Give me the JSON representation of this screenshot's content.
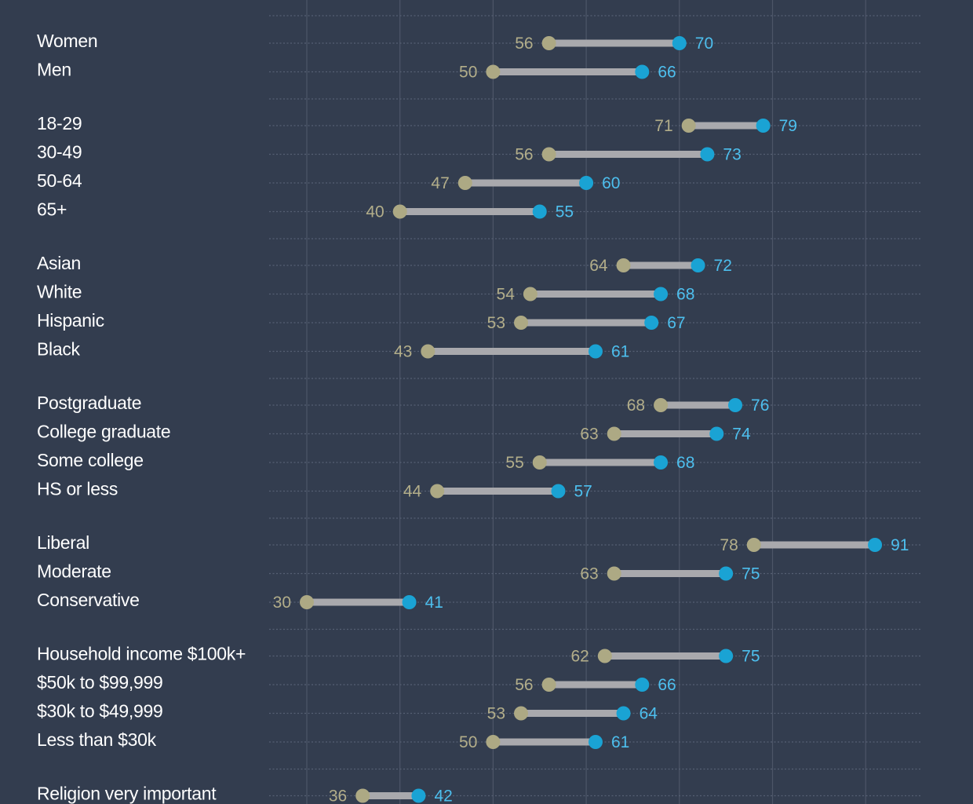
{
  "chart_data": {
    "type": "dumbbell",
    "xlim": [
      30,
      90
    ],
    "gridlines_x": [
      30,
      40,
      50,
      60,
      70,
      80,
      90
    ],
    "grid": true,
    "colors": {
      "background": "#333d4f",
      "start": "#ada984",
      "end": "#1aa3d4",
      "connector": "#a9a9ad"
    },
    "groups": [
      {
        "rows": [
          {
            "label": "Women",
            "start": 56,
            "end": 70
          },
          {
            "label": "Men",
            "start": 50,
            "end": 66
          }
        ]
      },
      {
        "rows": [
          {
            "label": "18-29",
            "start": 71,
            "end": 79
          },
          {
            "label": "30-49",
            "start": 56,
            "end": 73
          },
          {
            "label": "50-64",
            "start": 47,
            "end": 60
          },
          {
            "label": "65+",
            "start": 40,
            "end": 55
          }
        ]
      },
      {
        "rows": [
          {
            "label": "Asian",
            "start": 64,
            "end": 72
          },
          {
            "label": "White",
            "start": 54,
            "end": 68
          },
          {
            "label": "Hispanic",
            "start": 53,
            "end": 67
          },
          {
            "label": "Black",
            "start": 43,
            "end": 61
          }
        ]
      },
      {
        "rows": [
          {
            "label": "Postgraduate",
            "start": 68,
            "end": 76
          },
          {
            "label": "College graduate",
            "start": 63,
            "end": 74
          },
          {
            "label": "Some college",
            "start": 55,
            "end": 68
          },
          {
            "label": "HS or less",
            "start": 44,
            "end": 57
          }
        ]
      },
      {
        "rows": [
          {
            "label": "Liberal",
            "start": 78,
            "end": 91
          },
          {
            "label": "Moderate",
            "start": 63,
            "end": 75
          },
          {
            "label": "Conservative",
            "start": 30,
            "end": 41
          }
        ]
      },
      {
        "rows": [
          {
            "label": "Household income $100k+",
            "start": 62,
            "end": 75
          },
          {
            "label": "$50k to $99,999",
            "start": 56,
            "end": 66
          },
          {
            "label": "$30k to $49,999",
            "start": 53,
            "end": 64
          },
          {
            "label": "Less than $30k",
            "start": 50,
            "end": 61
          }
        ]
      },
      {
        "rows": [
          {
            "label": "Religion very important",
            "start": 36,
            "end": 42
          }
        ]
      }
    ]
  }
}
